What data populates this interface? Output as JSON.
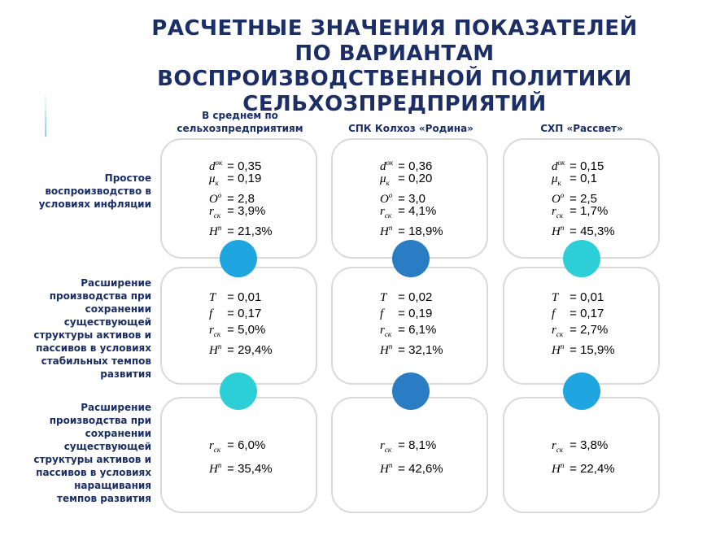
{
  "title": "РАСЧЕТНЫЕ ЗНАЧЕНИЯ ПОКАЗАТЕЛЕЙ ПО ВАРИАНТАМ ВОСПРОИЗВОДСТВЕННОЙ ПОЛИТИКИ СЕЛЬХОЗПРЕДПРИЯТИЙ",
  "columns": [
    "В среднем по сельхозпредприятиям",
    "СПК Колхоз «Родина»",
    "СХП «Рассвет»"
  ],
  "rows": [
    {
      "label": "Простое воспроизводство в условиях инфляции",
      "cells": [
        {
          "d": "= 0,35",
          "mu": "= 0,19",
          "o": "= 2,8",
          "r": "= 3,9%",
          "h": "= 21,3%"
        },
        {
          "d": "= 0,36",
          "mu": "= 0,20",
          "o": "= 3,0",
          "r": "= 4,1%",
          "h": "= 18,9%"
        },
        {
          "d": "= 0,15",
          "mu": "= 0,1",
          "o": "= 2,5",
          "r": "= 1,7%",
          "h": "= 45,3%"
        }
      ]
    },
    {
      "label": "Расширение производства при сохранении существующей структуры активов и пассивов в условиях стабильных темпов развития",
      "cells": [
        {
          "t": "= 0,01",
          "f": "= 0,17",
          "r": "= 5,0%",
          "h": "= 29,4%"
        },
        {
          "t": "= 0,02",
          "f": "= 0,19",
          "r": "= 6,1%",
          "h": "= 32,1%"
        },
        {
          "t": "= 0,01",
          "f": "= 0,17",
          "r": "= 2,7%",
          "h": "= 15,9%"
        }
      ]
    },
    {
      "label": "Расширение производства при сохранении существующей структуры активов и пассивов в условиях наращивания темпов развития",
      "cells": [
        {
          "r": "= 6,0%",
          "h": "= 35,4%"
        },
        {
          "r": "= 8,1%",
          "h": "= 42,6%"
        },
        {
          "r": "= 3,8%",
          "h": "= 22,4%"
        }
      ]
    }
  ],
  "symbols": {
    "d": "d",
    "d_sup": "ок",
    "mu": "μ",
    "mu_sub": "к",
    "o": "O",
    "o_sup": "о",
    "r": "r",
    "r_sub": "ск",
    "h": "H",
    "h_sup": "п",
    "t": "T",
    "f": "f"
  },
  "colors": {
    "title": "#1b2f66",
    "light_blue": "#1fa6e0",
    "dark_blue": "#2a7cc3",
    "cyan": "#2ccfd6"
  }
}
